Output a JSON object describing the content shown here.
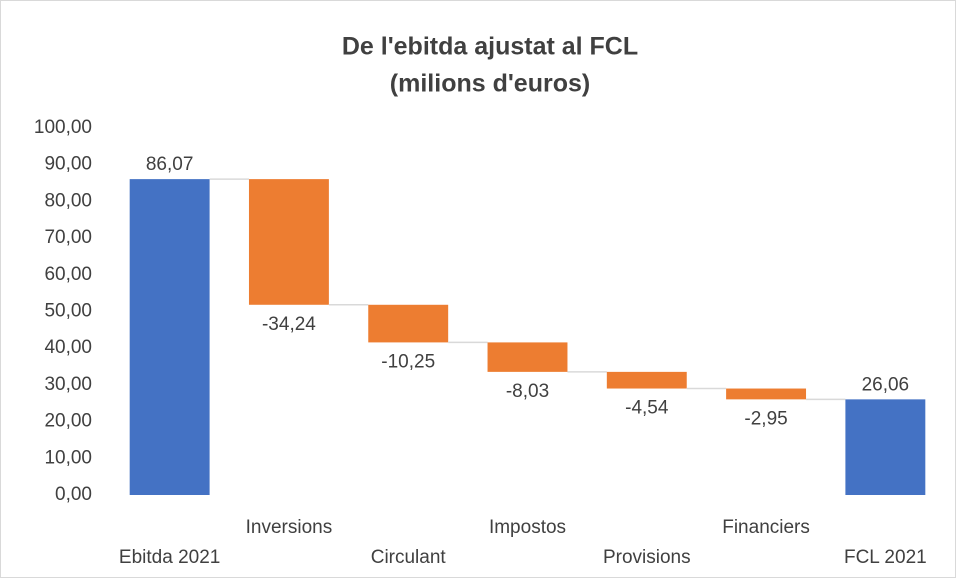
{
  "chart_data": {
    "type": "waterfall",
    "title": [
      "De l'ebitda ajustat al FCL",
      "(milions d'euros)"
    ],
    "categories": [
      "Ebitda 2021",
      "Inversions",
      "Circulant",
      "Impostos",
      "Provisions",
      "Financiers",
      "FCL 2021"
    ],
    "values": [
      86.07,
      -34.24,
      -10.25,
      -8.03,
      -4.54,
      -2.95,
      26.06
    ],
    "value_labels": [
      "86,07",
      "-34,24",
      "-10,25",
      "-8,03",
      "-4,54",
      "-2,95",
      "26,06"
    ],
    "is_total": [
      true,
      false,
      false,
      false,
      false,
      false,
      true
    ],
    "colors": [
      "#4472c4",
      "#ed7d31",
      "#ed7d31",
      "#ed7d31",
      "#ed7d31",
      "#ed7d31",
      "#4472c4"
    ],
    "ylim": [
      0,
      100
    ],
    "yticks": [
      {
        "value": 0,
        "label": "0,00"
      },
      {
        "value": 10,
        "label": "10,00"
      },
      {
        "value": 20,
        "label": "20,00"
      },
      {
        "value": 30,
        "label": "30,00"
      },
      {
        "value": 40,
        "label": "40,00"
      },
      {
        "value": 50,
        "label": "50,00"
      },
      {
        "value": 60,
        "label": "60,00"
      },
      {
        "value": 70,
        "label": "70,00"
      },
      {
        "value": 80,
        "label": "80,00"
      },
      {
        "value": 90,
        "label": "90,00"
      },
      {
        "value": 100,
        "label": "100,00"
      }
    ],
    "grid": false
  }
}
